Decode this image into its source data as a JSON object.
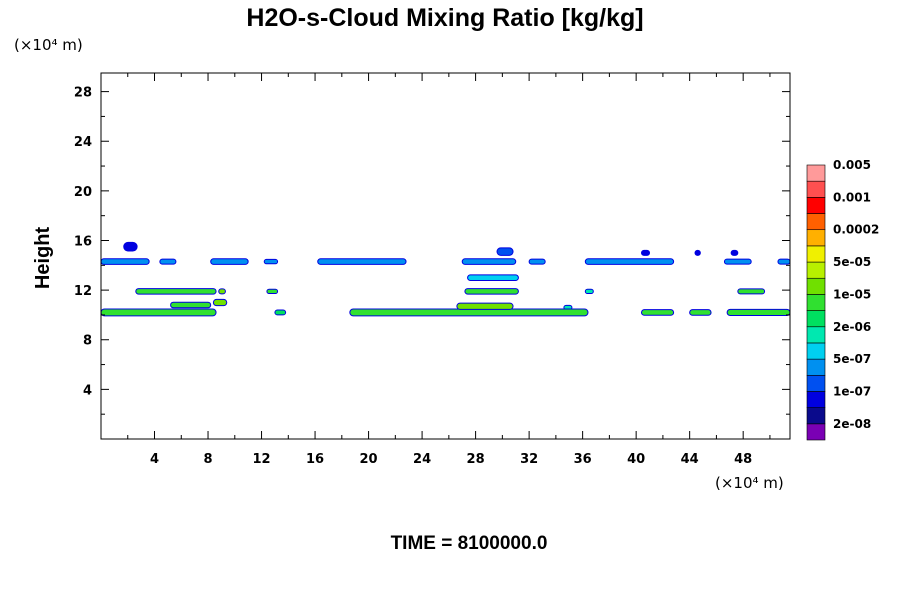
{
  "chart_data": {
    "type": "heatmap",
    "title": "H2O-s-Cloud Mixing Ratio [kg/kg]",
    "ylabel": "Height",
    "xlabel": "",
    "x_unit": "(×10⁴ m)",
    "y_unit": "(×10⁴ m)",
    "xlim": [
      0,
      51.5
    ],
    "ylim": [
      0,
      29.5
    ],
    "x_ticks": [
      4,
      8,
      12,
      16,
      20,
      24,
      28,
      32,
      36,
      40,
      44,
      48
    ],
    "y_ticks": [
      4,
      8,
      12,
      16,
      20,
      24,
      28
    ],
    "grid": false,
    "time_label": "TIME = 8100000.0",
    "colorbar": {
      "colors": [
        "#7a00b4",
        "#0a0a8c",
        "#0000e0",
        "#0050f0",
        "#0090f0",
        "#00d0f0",
        "#00e8b0",
        "#00e060",
        "#30e030",
        "#70e000",
        "#b8f000",
        "#f0f000",
        "#ffb000",
        "#ff6000",
        "#ff0000",
        "#ff5050",
        "#ff9a9a"
      ],
      "labels": [
        "2e-08",
        "1e-07",
        "5e-07",
        "2e-06",
        "1e-05",
        "5e-05",
        "0.0002",
        "0.001",
        "0.005"
      ]
    },
    "features": [
      {
        "x0": 0.0,
        "x1": 3.6,
        "y": 14.3,
        "h": 0.45,
        "level": 4
      },
      {
        "x0": 4.4,
        "x1": 5.6,
        "y": 14.3,
        "h": 0.4,
        "level": 4
      },
      {
        "x0": 8.2,
        "x1": 11.0,
        "y": 14.3,
        "h": 0.45,
        "level": 4
      },
      {
        "x0": 12.2,
        "x1": 13.2,
        "y": 14.3,
        "h": 0.35,
        "level": 4
      },
      {
        "x0": 16.2,
        "x1": 22.8,
        "y": 14.3,
        "h": 0.45,
        "level": 4
      },
      {
        "x0": 27.0,
        "x1": 31.0,
        "y": 14.3,
        "h": 0.45,
        "level": 4
      },
      {
        "x0": 32.0,
        "x1": 33.2,
        "y": 14.3,
        "h": 0.4,
        "level": 4
      },
      {
        "x0": 36.2,
        "x1": 42.8,
        "y": 14.3,
        "h": 0.45,
        "level": 4
      },
      {
        "x0": 46.6,
        "x1": 48.6,
        "y": 14.3,
        "h": 0.4,
        "level": 4
      },
      {
        "x0": 50.6,
        "x1": 51.5,
        "y": 14.3,
        "h": 0.4,
        "level": 4
      },
      {
        "x0": 1.7,
        "x1": 2.7,
        "y": 15.5,
        "h": 0.7,
        "level": 2
      },
      {
        "x0": 29.6,
        "x1": 30.8,
        "y": 15.1,
        "h": 0.6,
        "level": 3
      },
      {
        "x0": 40.4,
        "x1": 41.0,
        "y": 15.0,
        "h": 0.4,
        "level": 2
      },
      {
        "x0": 44.4,
        "x1": 44.8,
        "y": 15.0,
        "h": 0.4,
        "level": 2
      },
      {
        "x0": 47.1,
        "x1": 47.6,
        "y": 15.0,
        "h": 0.4,
        "level": 2
      },
      {
        "x0": 2.6,
        "x1": 8.6,
        "y": 11.9,
        "h": 0.45,
        "level": 8
      },
      {
        "x0": 8.8,
        "x1": 9.3,
        "y": 11.9,
        "h": 0.4,
        "level": 9
      },
      {
        "x0": 12.4,
        "x1": 13.2,
        "y": 11.9,
        "h": 0.35,
        "level": 8
      },
      {
        "x0": 27.2,
        "x1": 31.2,
        "y": 11.9,
        "h": 0.45,
        "level": 8
      },
      {
        "x0": 36.2,
        "x1": 36.8,
        "y": 11.9,
        "h": 0.35,
        "level": 6
      },
      {
        "x0": 47.6,
        "x1": 49.6,
        "y": 11.9,
        "h": 0.4,
        "level": 8
      },
      {
        "x0": 5.2,
        "x1": 8.2,
        "y": 10.8,
        "h": 0.45,
        "level": 8
      },
      {
        "x0": 8.4,
        "x1": 9.4,
        "y": 11.0,
        "h": 0.5,
        "level": 9
      },
      {
        "x0": 27.4,
        "x1": 31.2,
        "y": 13.0,
        "h": 0.45,
        "level": 5
      },
      {
        "x0": 34.6,
        "x1": 35.2,
        "y": 10.6,
        "h": 0.35,
        "level": 6
      },
      {
        "x0": 0.0,
        "x1": 8.6,
        "y": 10.2,
        "h": 0.55,
        "level": 8
      },
      {
        "x0": 13.0,
        "x1": 13.8,
        "y": 10.2,
        "h": 0.4,
        "level": 7
      },
      {
        "x0": 18.6,
        "x1": 36.4,
        "y": 10.2,
        "h": 0.55,
        "level": 8
      },
      {
        "x0": 26.6,
        "x1": 30.8,
        "y": 10.7,
        "h": 0.5,
        "level": 9
      },
      {
        "x0": 40.4,
        "x1": 42.8,
        "y": 10.2,
        "h": 0.45,
        "level": 8
      },
      {
        "x0": 44.0,
        "x1": 45.6,
        "y": 10.2,
        "h": 0.45,
        "level": 8
      },
      {
        "x0": 46.8,
        "x1": 51.5,
        "y": 10.2,
        "h": 0.5,
        "level": 8
      }
    ]
  }
}
